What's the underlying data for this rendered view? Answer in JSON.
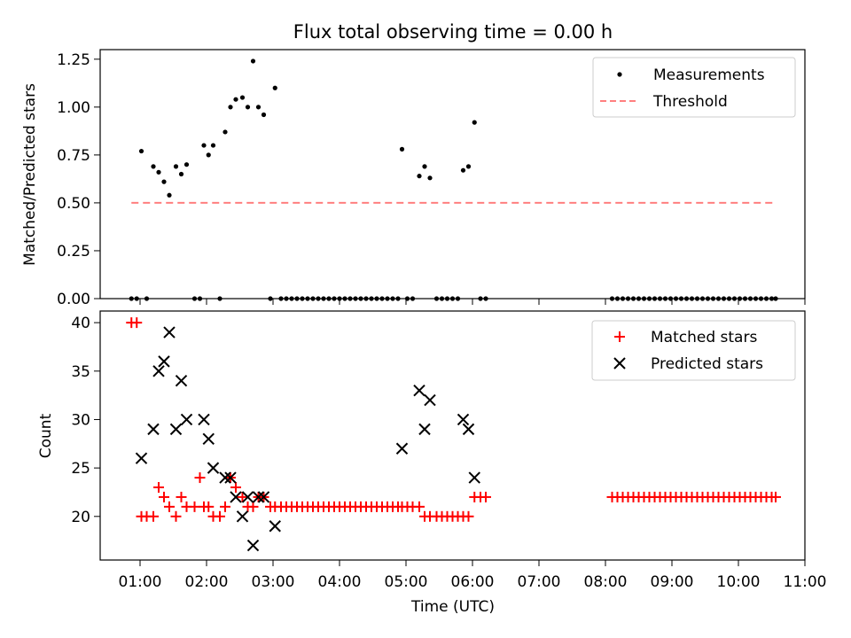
{
  "chart_data": [
    {
      "type": "scatter",
      "title": "Flux total observing time = 0.00 h",
      "xlabel": "",
      "ylabel": "Matched/Predicted stars",
      "xlim": [
        0.4,
        11.0
      ],
      "ylim": [
        0.0,
        1.3
      ],
      "yticks": [
        0.0,
        0.25,
        0.5,
        0.75,
        1.0,
        1.25
      ],
      "ytick_labels": [
        "0.00",
        "0.25",
        "0.50",
        "0.75",
        "1.00",
        "1.25"
      ],
      "legend_position": "top-right",
      "grid": false,
      "series": [
        {
          "name": "Measurements",
          "marker": "dot",
          "color": "#000000",
          "points": [
            [
              0.87,
              0.0
            ],
            [
              0.95,
              0.0
            ],
            [
              1.02,
              0.77
            ],
            [
              1.1,
              0.0
            ],
            [
              1.2,
              0.69
            ],
            [
              1.28,
              0.66
            ],
            [
              1.36,
              0.61
            ],
            [
              1.44,
              0.54
            ],
            [
              1.54,
              0.69
            ],
            [
              1.62,
              0.65
            ],
            [
              1.7,
              0.7
            ],
            [
              1.82,
              0.0
            ],
            [
              1.9,
              0.0
            ],
            [
              1.96,
              0.8
            ],
            [
              2.03,
              0.75
            ],
            [
              2.1,
              0.8
            ],
            [
              2.2,
              0.0
            ],
            [
              2.28,
              0.87
            ],
            [
              2.36,
              1.0
            ],
            [
              2.44,
              1.04
            ],
            [
              2.54,
              1.05
            ],
            [
              2.62,
              1.0
            ],
            [
              2.7,
              1.24
            ],
            [
              2.78,
              1.0
            ],
            [
              2.86,
              0.96
            ],
            [
              2.96,
              0.0
            ],
            [
              3.03,
              1.1
            ],
            [
              3.12,
              0.0
            ],
            [
              3.2,
              0.0
            ],
            [
              3.28,
              0.0
            ],
            [
              3.36,
              0.0
            ],
            [
              3.44,
              0.0
            ],
            [
              3.52,
              0.0
            ],
            [
              3.6,
              0.0
            ],
            [
              3.68,
              0.0
            ],
            [
              3.76,
              0.0
            ],
            [
              3.84,
              0.0
            ],
            [
              3.92,
              0.0
            ],
            [
              4.0,
              0.0
            ],
            [
              4.08,
              0.0
            ],
            [
              4.16,
              0.0
            ],
            [
              4.24,
              0.0
            ],
            [
              4.32,
              0.0
            ],
            [
              4.4,
              0.0
            ],
            [
              4.48,
              0.0
            ],
            [
              4.56,
              0.0
            ],
            [
              4.64,
              0.0
            ],
            [
              4.72,
              0.0
            ],
            [
              4.8,
              0.0
            ],
            [
              4.88,
              0.0
            ],
            [
              4.94,
              0.78
            ],
            [
              5.02,
              0.0
            ],
            [
              5.1,
              0.0
            ],
            [
              5.2,
              0.64
            ],
            [
              5.28,
              0.69
            ],
            [
              5.36,
              0.63
            ],
            [
              5.46,
              0.0
            ],
            [
              5.54,
              0.0
            ],
            [
              5.62,
              0.0
            ],
            [
              5.7,
              0.0
            ],
            [
              5.78,
              0.0
            ],
            [
              5.86,
              0.67
            ],
            [
              5.94,
              0.69
            ],
            [
              6.03,
              0.92
            ],
            [
              6.12,
              0.0
            ],
            [
              6.2,
              0.0
            ],
            [
              8.1,
              0.0
            ],
            [
              8.18,
              0.0
            ],
            [
              8.26,
              0.0
            ],
            [
              8.34,
              0.0
            ],
            [
              8.42,
              0.0
            ],
            [
              8.5,
              0.0
            ],
            [
              8.58,
              0.0
            ],
            [
              8.66,
              0.0
            ],
            [
              8.74,
              0.0
            ],
            [
              8.82,
              0.0
            ],
            [
              8.9,
              0.0
            ],
            [
              8.98,
              0.0
            ],
            [
              9.06,
              0.0
            ],
            [
              9.14,
              0.0
            ],
            [
              9.22,
              0.0
            ],
            [
              9.3,
              0.0
            ],
            [
              9.38,
              0.0
            ],
            [
              9.46,
              0.0
            ],
            [
              9.54,
              0.0
            ],
            [
              9.62,
              0.0
            ],
            [
              9.7,
              0.0
            ],
            [
              9.78,
              0.0
            ],
            [
              9.86,
              0.0
            ],
            [
              9.94,
              0.0
            ],
            [
              10.02,
              0.0
            ],
            [
              10.1,
              0.0
            ],
            [
              10.18,
              0.0
            ],
            [
              10.26,
              0.0
            ],
            [
              10.34,
              0.0
            ],
            [
              10.42,
              0.0
            ],
            [
              10.5,
              0.0
            ],
            [
              10.56,
              0.0
            ]
          ]
        },
        {
          "name": "Threshold",
          "marker": "dashed-line",
          "color": "#ff7f7f",
          "points": [
            [
              0.87,
              0.5
            ],
            [
              10.56,
              0.5
            ]
          ]
        }
      ]
    },
    {
      "type": "scatter",
      "title": "",
      "xlabel": "Time (UTC)",
      "ylabel": "Count",
      "xlim": [
        0.4,
        11.0
      ],
      "ylim": [
        15.5,
        41.2
      ],
      "xticks": [
        1,
        2,
        3,
        4,
        5,
        6,
        7,
        8,
        9,
        10,
        11
      ],
      "xtick_labels": [
        "01:00",
        "02:00",
        "03:00",
        "04:00",
        "05:00",
        "06:00",
        "07:00",
        "08:00",
        "09:00",
        "10:00",
        "11:00"
      ],
      "yticks": [
        20,
        25,
        30,
        35,
        40
      ],
      "ytick_labels": [
        "20",
        "25",
        "30",
        "35",
        "40"
      ],
      "legend_position": "top-right",
      "grid": false,
      "series": [
        {
          "name": "Matched stars",
          "marker": "plus",
          "color": "#ff0000",
          "points": [
            [
              0.87,
              40
            ],
            [
              0.95,
              40
            ],
            [
              1.02,
              20
            ],
            [
              1.1,
              20
            ],
            [
              1.2,
              20
            ],
            [
              1.28,
              23
            ],
            [
              1.36,
              22
            ],
            [
              1.44,
              21
            ],
            [
              1.54,
              20
            ],
            [
              1.62,
              22
            ],
            [
              1.7,
              21
            ],
            [
              1.82,
              21
            ],
            [
              1.9,
              24
            ],
            [
              1.96,
              21
            ],
            [
              2.03,
              21
            ],
            [
              2.1,
              20
            ],
            [
              2.2,
              20
            ],
            [
              2.28,
              21
            ],
            [
              2.36,
              24
            ],
            [
              2.44,
              23
            ],
            [
              2.54,
              22
            ],
            [
              2.62,
              21
            ],
            [
              2.7,
              21
            ],
            [
              2.78,
              22
            ],
            [
              2.86,
              22
            ],
            [
              2.96,
              21
            ],
            [
              3.03,
              21
            ],
            [
              3.12,
              21
            ],
            [
              3.2,
              21
            ],
            [
              3.28,
              21
            ],
            [
              3.36,
              21
            ],
            [
              3.44,
              21
            ],
            [
              3.52,
              21
            ],
            [
              3.6,
              21
            ],
            [
              3.68,
              21
            ],
            [
              3.76,
              21
            ],
            [
              3.84,
              21
            ],
            [
              3.92,
              21
            ],
            [
              4.0,
              21
            ],
            [
              4.08,
              21
            ],
            [
              4.16,
              21
            ],
            [
              4.24,
              21
            ],
            [
              4.32,
              21
            ],
            [
              4.4,
              21
            ],
            [
              4.48,
              21
            ],
            [
              4.56,
              21
            ],
            [
              4.64,
              21
            ],
            [
              4.72,
              21
            ],
            [
              4.8,
              21
            ],
            [
              4.88,
              21
            ],
            [
              4.94,
              21
            ],
            [
              5.02,
              21
            ],
            [
              5.1,
              21
            ],
            [
              5.2,
              21
            ],
            [
              5.28,
              20
            ],
            [
              5.36,
              20
            ],
            [
              5.46,
              20
            ],
            [
              5.54,
              20
            ],
            [
              5.62,
              20
            ],
            [
              5.7,
              20
            ],
            [
              5.78,
              20
            ],
            [
              5.86,
              20
            ],
            [
              5.94,
              20
            ],
            [
              6.03,
              22
            ],
            [
              6.12,
              22
            ],
            [
              6.2,
              22
            ],
            [
              8.1,
              22
            ],
            [
              8.18,
              22
            ],
            [
              8.26,
              22
            ],
            [
              8.34,
              22
            ],
            [
              8.42,
              22
            ],
            [
              8.5,
              22
            ],
            [
              8.58,
              22
            ],
            [
              8.66,
              22
            ],
            [
              8.74,
              22
            ],
            [
              8.82,
              22
            ],
            [
              8.9,
              22
            ],
            [
              8.98,
              22
            ],
            [
              9.06,
              22
            ],
            [
              9.14,
              22
            ],
            [
              9.22,
              22
            ],
            [
              9.3,
              22
            ],
            [
              9.38,
              22
            ],
            [
              9.46,
              22
            ],
            [
              9.54,
              22
            ],
            [
              9.62,
              22
            ],
            [
              9.7,
              22
            ],
            [
              9.78,
              22
            ],
            [
              9.86,
              22
            ],
            [
              9.94,
              22
            ],
            [
              10.02,
              22
            ],
            [
              10.1,
              22
            ],
            [
              10.18,
              22
            ],
            [
              10.26,
              22
            ],
            [
              10.34,
              22
            ],
            [
              10.42,
              22
            ],
            [
              10.5,
              22
            ],
            [
              10.56,
              22
            ]
          ]
        },
        {
          "name": "Predicted stars",
          "marker": "x",
          "color": "#000000",
          "points": [
            [
              1.02,
              26
            ],
            [
              1.2,
              29
            ],
            [
              1.28,
              35
            ],
            [
              1.36,
              36
            ],
            [
              1.44,
              39
            ],
            [
              1.54,
              29
            ],
            [
              1.62,
              34
            ],
            [
              1.7,
              30
            ],
            [
              1.96,
              30
            ],
            [
              2.03,
              28
            ],
            [
              2.1,
              25
            ],
            [
              2.28,
              24
            ],
            [
              2.36,
              24
            ],
            [
              2.44,
              22
            ],
            [
              2.54,
              20
            ],
            [
              2.62,
              22
            ],
            [
              2.7,
              17
            ],
            [
              2.78,
              22
            ],
            [
              2.86,
              22
            ],
            [
              3.03,
              19
            ],
            [
              4.94,
              27
            ],
            [
              5.2,
              33
            ],
            [
              5.28,
              29
            ],
            [
              5.36,
              32
            ],
            [
              5.86,
              30
            ],
            [
              5.94,
              29
            ],
            [
              6.03,
              24
            ]
          ]
        }
      ]
    }
  ]
}
